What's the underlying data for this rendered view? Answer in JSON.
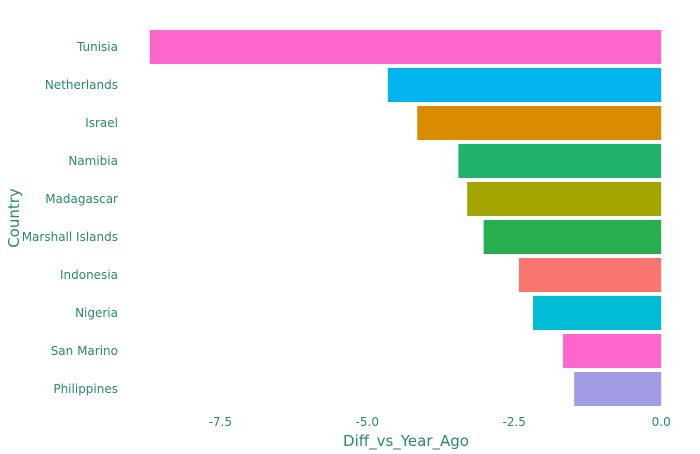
{
  "chart_data": {
    "type": "bar",
    "orientation": "horizontal",
    "categories": [
      "Tunisia",
      "Netherlands",
      "Israel",
      "Namibia",
      "Madagascar",
      "Marshall Islands",
      "Indonesia",
      "Nigeria",
      "San Marino",
      "Philippines"
    ],
    "values": [
      -8.7,
      -4.65,
      -4.15,
      -3.45,
      -3.3,
      -3.02,
      -2.42,
      -2.18,
      -1.67,
      -1.48
    ],
    "colors": [
      "#ff66cc",
      "#00b4ef",
      "#d98c00",
      "#21b26b",
      "#a3a500",
      "#27ae4e",
      "#f8766d",
      "#00bcd4",
      "#ff66cc",
      "#a29be6"
    ],
    "xlabel": "Diff_vs_Year_Ago",
    "ylabel": "Country",
    "xlim": [
      -8.9,
      0.15
    ],
    "xticks": [
      -7.5,
      -5.0,
      -2.5,
      0.0
    ],
    "xtick_labels": [
      "-7.5",
      "-5.0",
      "-2.5",
      "0.0"
    ],
    "grid": false,
    "legend": "none"
  }
}
